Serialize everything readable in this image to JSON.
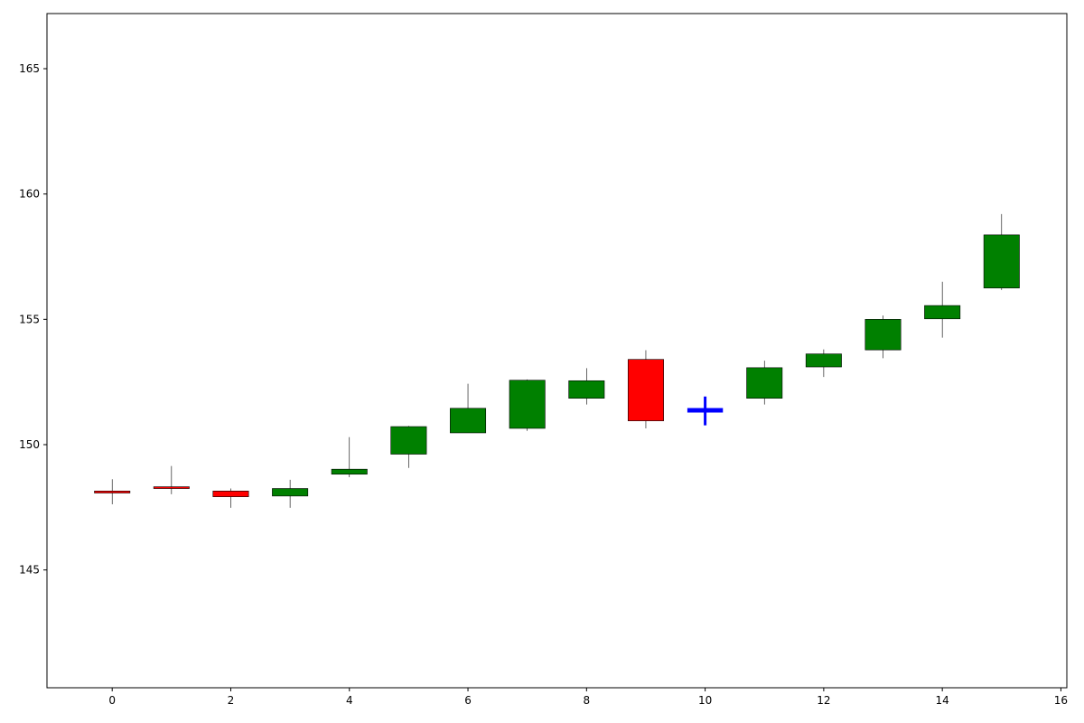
{
  "chart_data": {
    "type": "candlestick",
    "title": "",
    "xlabel": "",
    "ylabel": "",
    "xlim": [
      -1.1,
      16.1
    ],
    "ylim": [
      140.3,
      167.2
    ],
    "grid": false,
    "legend": "none",
    "x_ticks": [
      0,
      2,
      4,
      6,
      8,
      10,
      12,
      14,
      16
    ],
    "y_ticks": [
      145,
      150,
      155,
      160,
      165
    ],
    "x_tick_labels": [
      "0",
      "2",
      "4",
      "6",
      "8",
      "10",
      "12",
      "14",
      "16"
    ],
    "y_tick_labels": [
      "145",
      "150",
      "155",
      "160",
      "165"
    ],
    "colors": {
      "up": "#008000",
      "down": "#ff0000",
      "doji": "#0000ff",
      "edge": "#000000",
      "axes": "#000000",
      "background": "#ffffff"
    },
    "candles": [
      {
        "x": 0,
        "open": 148.15,
        "high": 148.62,
        "low": 147.62,
        "close": 148.07
      },
      {
        "x": 1,
        "open": 148.32,
        "high": 149.15,
        "low": 148.02,
        "close": 148.25
      },
      {
        "x": 2,
        "open": 148.15,
        "high": 148.25,
        "low": 147.48,
        "close": 147.92
      },
      {
        "x": 3,
        "open": 147.95,
        "high": 148.6,
        "low": 147.48,
        "close": 148.25
      },
      {
        "x": 4,
        "open": 148.82,
        "high": 150.3,
        "low": 148.7,
        "close": 149.02
      },
      {
        "x": 5,
        "open": 149.62,
        "high": 150.75,
        "low": 149.07,
        "close": 150.72
      },
      {
        "x": 6,
        "open": 150.47,
        "high": 152.43,
        "low": 150.47,
        "close": 151.45
      },
      {
        "x": 7,
        "open": 150.65,
        "high": 152.6,
        "low": 150.55,
        "close": 152.57
      },
      {
        "x": 8,
        "open": 151.85,
        "high": 153.05,
        "low": 151.6,
        "close": 152.55
      },
      {
        "x": 9,
        "open": 153.4,
        "high": 153.77,
        "low": 150.65,
        "close": 150.95
      },
      {
        "x": 10,
        "open": 151.37,
        "high": 151.92,
        "low": 150.77,
        "close": 151.37
      },
      {
        "x": 11,
        "open": 151.85,
        "high": 153.35,
        "low": 151.6,
        "close": 153.07
      },
      {
        "x": 12,
        "open": 153.1,
        "high": 153.8,
        "low": 152.7,
        "close": 153.62
      },
      {
        "x": 13,
        "open": 153.78,
        "high": 155.15,
        "low": 153.45,
        "close": 155.0
      },
      {
        "x": 14,
        "open": 155.02,
        "high": 156.5,
        "low": 154.27,
        "close": 155.55
      },
      {
        "x": 15,
        "open": 156.25,
        "high": 159.2,
        "low": 156.17,
        "close": 158.37
      }
    ]
  }
}
